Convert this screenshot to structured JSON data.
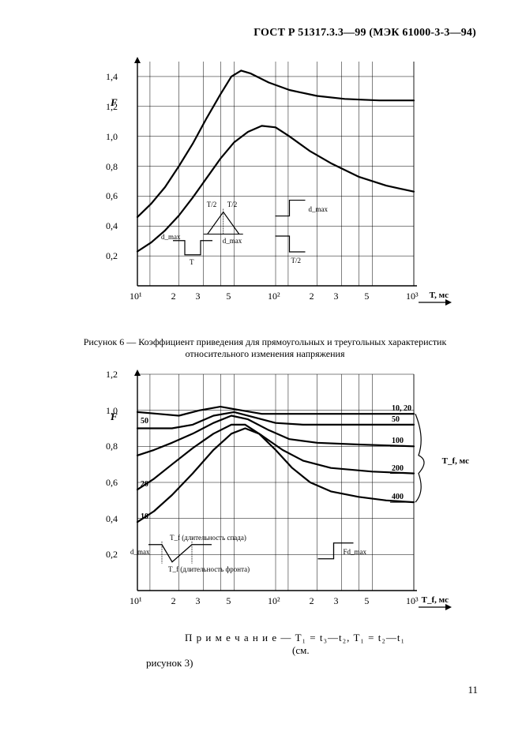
{
  "header": "ГОСТ Р 51317.3.3—99 (МЭК 61000-3-3—94)",
  "page_number": "11",
  "caption1_line1": "Рисунок 6 — Коэффициент приведения для прямоугольных и треугольных характеристик",
  "caption1_line2": "относительного изменения напряжения",
  "note_text": "П р и м е ч а н и е — T₁ = t₃—t₂, T₁ = t₂—t₁",
  "see_text": "(см.",
  "ref_text": "рисунок 3)",
  "chart1": {
    "type": "line-log-x",
    "x_ticks_pos": [
      0.0,
      0.091,
      0.301,
      0.477,
      0.602,
      0.699,
      1.0,
      1.091,
      1.301,
      1.477,
      1.602,
      1.699,
      2.0
    ],
    "x_ticks_lbl": [
      "10¹",
      "",
      "2",
      "3",
      "",
      "5",
      "10²",
      "",
      "2",
      "3",
      "",
      "5",
      "10³"
    ],
    "x_min_log": 0.0,
    "x_max_log": 2.0,
    "x_axis_label": "T, мс",
    "y_min": 0.0,
    "y_max": 1.5,
    "y_ticks": [
      0.0,
      0.2,
      0.4,
      0.6,
      0.8,
      1.0,
      1.2,
      1.4
    ],
    "y_axis_label": "F",
    "axis_color": "#000000",
    "grid_color": "#000000",
    "line_color": "#000000",
    "line_width": 2.2,
    "series": [
      {
        "name": "upper",
        "points": [
          [
            0.0,
            0.46
          ],
          [
            0.1,
            0.55
          ],
          [
            0.2,
            0.66
          ],
          [
            0.3,
            0.8
          ],
          [
            0.4,
            0.95
          ],
          [
            0.5,
            1.12
          ],
          [
            0.6,
            1.28
          ],
          [
            0.68,
            1.4
          ],
          [
            0.75,
            1.44
          ],
          [
            0.82,
            1.42
          ],
          [
            0.95,
            1.36
          ],
          [
            1.1,
            1.31
          ],
          [
            1.3,
            1.27
          ],
          [
            1.5,
            1.25
          ],
          [
            1.75,
            1.24
          ],
          [
            2.0,
            1.24
          ]
        ]
      },
      {
        "name": "lower",
        "points": [
          [
            0.0,
            0.23
          ],
          [
            0.1,
            0.29
          ],
          [
            0.2,
            0.37
          ],
          [
            0.3,
            0.47
          ],
          [
            0.4,
            0.59
          ],
          [
            0.5,
            0.72
          ],
          [
            0.6,
            0.85
          ],
          [
            0.7,
            0.96
          ],
          [
            0.8,
            1.03
          ],
          [
            0.9,
            1.07
          ],
          [
            1.0,
            1.06
          ],
          [
            1.1,
            1.0
          ],
          [
            1.25,
            0.9
          ],
          [
            1.4,
            0.82
          ],
          [
            1.6,
            0.73
          ],
          [
            1.8,
            0.67
          ],
          [
            2.0,
            0.63
          ]
        ]
      }
    ],
    "inset_labels": {
      "T2a": "T/2",
      "T2b": "T/2",
      "dmax1": "d_max",
      "dmax2": "d_max",
      "T": "T",
      "dmax3": "d_max",
      "T2c": "T/2"
    }
  },
  "chart2": {
    "type": "line-log-x",
    "x_ticks_pos": [
      0.0,
      0.091,
      0.301,
      0.477,
      0.602,
      0.699,
      1.0,
      1.091,
      1.301,
      1.477,
      1.602,
      1.699,
      2.0
    ],
    "x_ticks_lbl": [
      "10¹",
      "",
      "2",
      "3",
      "",
      "5",
      "10²",
      "",
      "2",
      "3",
      "",
      "5",
      "10³"
    ],
    "x_min_log": 0.0,
    "x_max_log": 2.0,
    "x_axis_label": "T_f, мс",
    "y_min": 0.0,
    "y_max": 1.2,
    "y_ticks": [
      0.0,
      0.2,
      0.4,
      0.6,
      0.8,
      1.0,
      1.2
    ],
    "y_axis_label": "F",
    "right_label": "T_f, мс",
    "axis_color": "#000000",
    "grid_color": "#000000",
    "line_color": "#000000",
    "line_width": 2.2,
    "series": [
      {
        "name": "1020top",
        "left_label": "",
        "right_label": "10, 20",
        "points": [
          [
            0.0,
            0.99
          ],
          [
            0.15,
            0.98
          ],
          [
            0.3,
            0.97
          ],
          [
            0.45,
            1.0
          ],
          [
            0.6,
            1.02
          ],
          [
            0.75,
            1.0
          ],
          [
            0.9,
            0.98
          ],
          [
            1.1,
            0.98
          ],
          [
            1.4,
            0.98
          ],
          [
            1.7,
            0.98
          ],
          [
            2.0,
            0.98
          ]
        ]
      },
      {
        "name": "50t",
        "left_label": "50",
        "right_label": "50",
        "points": [
          [
            0.0,
            0.9
          ],
          [
            0.12,
            0.9
          ],
          [
            0.25,
            0.9
          ],
          [
            0.4,
            0.92
          ],
          [
            0.55,
            0.97
          ],
          [
            0.7,
            0.99
          ],
          [
            0.85,
            0.96
          ],
          [
            1.0,
            0.93
          ],
          [
            1.2,
            0.92
          ],
          [
            1.5,
            0.92
          ],
          [
            2.0,
            0.92
          ]
        ]
      },
      {
        "name": "100t",
        "left_label": "",
        "right_label": "100",
        "points": [
          [
            0.0,
            0.75
          ],
          [
            0.12,
            0.78
          ],
          [
            0.25,
            0.82
          ],
          [
            0.4,
            0.87
          ],
          [
            0.55,
            0.93
          ],
          [
            0.68,
            0.97
          ],
          [
            0.8,
            0.95
          ],
          [
            0.95,
            0.89
          ],
          [
            1.1,
            0.84
          ],
          [
            1.3,
            0.82
          ],
          [
            1.6,
            0.81
          ],
          [
            2.0,
            0.8
          ]
        ]
      },
      {
        "name": "200t",
        "left_label": "20",
        "right_label": "200",
        "points": [
          [
            0.0,
            0.56
          ],
          [
            0.12,
            0.62
          ],
          [
            0.25,
            0.7
          ],
          [
            0.4,
            0.79
          ],
          [
            0.55,
            0.87
          ],
          [
            0.68,
            0.92
          ],
          [
            0.78,
            0.92
          ],
          [
            0.9,
            0.86
          ],
          [
            1.05,
            0.78
          ],
          [
            1.2,
            0.72
          ],
          [
            1.4,
            0.68
          ],
          [
            1.7,
            0.66
          ],
          [
            2.0,
            0.65
          ]
        ]
      },
      {
        "name": "400t",
        "left_label": "10",
        "right_label": "400",
        "points": [
          [
            0.0,
            0.38
          ],
          [
            0.12,
            0.44
          ],
          [
            0.25,
            0.53
          ],
          [
            0.4,
            0.65
          ],
          [
            0.55,
            0.78
          ],
          [
            0.68,
            0.87
          ],
          [
            0.78,
            0.9
          ],
          [
            0.88,
            0.87
          ],
          [
            1.0,
            0.78
          ],
          [
            1.12,
            0.68
          ],
          [
            1.25,
            0.6
          ],
          [
            1.4,
            0.55
          ],
          [
            1.6,
            0.52
          ],
          [
            1.8,
            0.5
          ],
          [
            2.0,
            0.49
          ]
        ]
      }
    ],
    "left_labels": [
      {
        "y": 0.91,
        "text": "50"
      },
      {
        "y": 0.56,
        "text": "20"
      },
      {
        "y": 0.38,
        "text": "10"
      }
    ],
    "right_labels": [
      {
        "y": 0.98,
        "text": "10, 20"
      },
      {
        "y": 0.92,
        "text": "50"
      },
      {
        "y": 0.8,
        "text": "100"
      },
      {
        "y": 0.65,
        "text": "200"
      },
      {
        "y": 0.49,
        "text": "400"
      }
    ],
    "inset_labels": {
      "dmax": "d_max",
      "Tf_down": "T_f (длительность спада)",
      "Tf_up": "T_f (длительность фронта)",
      "Fdmax": "Fd_max"
    }
  }
}
